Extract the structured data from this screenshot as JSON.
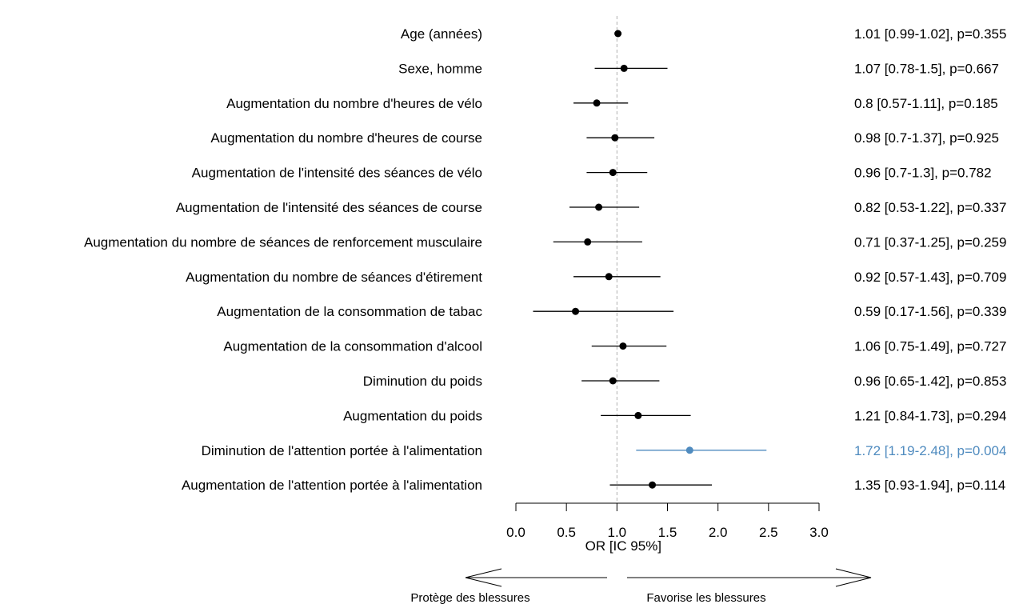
{
  "chart_data": {
    "type": "forest",
    "title": "",
    "xlabel": "OR [IC 95%]",
    "xlim": [
      0,
      3
    ],
    "xticks": [
      "0.0",
      "0.5",
      "1.0",
      "1.5",
      "2.0",
      "2.5",
      "3.0"
    ],
    "reference_line": 1,
    "rows": [
      {
        "label": "Age (années)",
        "or": 1.01,
        "lo": 0.99,
        "hi": 1.02,
        "text": "1.01 [0.99-1.02], p=0.355",
        "significant": false
      },
      {
        "label": "Sexe, homme",
        "or": 1.07,
        "lo": 0.78,
        "hi": 1.5,
        "text": "1.07 [0.78-1.5], p=0.667",
        "significant": false
      },
      {
        "label": "Augmentation du nombre d'heures de vélo",
        "or": 0.8,
        "lo": 0.57,
        "hi": 1.11,
        "text": "0.8 [0.57-1.11], p=0.185",
        "significant": false
      },
      {
        "label": "Augmentation du nombre d'heures de course",
        "or": 0.98,
        "lo": 0.7,
        "hi": 1.37,
        "text": "0.98 [0.7-1.37], p=0.925",
        "significant": false
      },
      {
        "label": "Augmentation de l'intensité des séances de vélo",
        "or": 0.96,
        "lo": 0.7,
        "hi": 1.3,
        "text": "0.96 [0.7-1.3], p=0.782",
        "significant": false
      },
      {
        "label": "Augmentation de l'intensité des séances de course",
        "or": 0.82,
        "lo": 0.53,
        "hi": 1.22,
        "text": "0.82 [0.53-1.22], p=0.337",
        "significant": false
      },
      {
        "label": "Augmentation du nombre de séances de renforcement musculaire",
        "or": 0.71,
        "lo": 0.37,
        "hi": 1.25,
        "text": "0.71 [0.37-1.25], p=0.259",
        "significant": false
      },
      {
        "label": "Augmentation du nombre de séances d'étirement",
        "or": 0.92,
        "lo": 0.57,
        "hi": 1.43,
        "text": "0.92 [0.57-1.43], p=0.709",
        "significant": false
      },
      {
        "label": "Augmentation de la consommation de tabac",
        "or": 0.59,
        "lo": 0.17,
        "hi": 1.56,
        "text": "0.59 [0.17-1.56], p=0.339",
        "significant": false
      },
      {
        "label": "Augmentation de la consommation d'alcool",
        "or": 1.06,
        "lo": 0.75,
        "hi": 1.49,
        "text": "1.06 [0.75-1.49], p=0.727",
        "significant": false
      },
      {
        "label": "Diminution du poids",
        "or": 0.96,
        "lo": 0.65,
        "hi": 1.42,
        "text": "0.96 [0.65-1.42], p=0.853",
        "significant": false
      },
      {
        "label": "Augmentation du poids",
        "or": 1.21,
        "lo": 0.84,
        "hi": 1.73,
        "text": "1.21 [0.84-1.73], p=0.294",
        "significant": false
      },
      {
        "label": "Diminution de l'attention portée à l'alimentation",
        "or": 1.72,
        "lo": 1.19,
        "hi": 2.48,
        "text": "1.72 [1.19-2.48], p=0.004",
        "significant": true
      },
      {
        "label": "Augmentation de l'attention portée à l'alimentation",
        "or": 1.35,
        "lo": 0.93,
        "hi": 1.94,
        "text": "1.35 [0.93-1.94], p=0.114",
        "significant": false
      }
    ],
    "arrows": {
      "left": "Protège des blessures",
      "right": "Favorise les blessures"
    },
    "colors": {
      "default": "#000000",
      "significant": "#4f8bbf",
      "reference_line": "#b0b0b0"
    }
  }
}
